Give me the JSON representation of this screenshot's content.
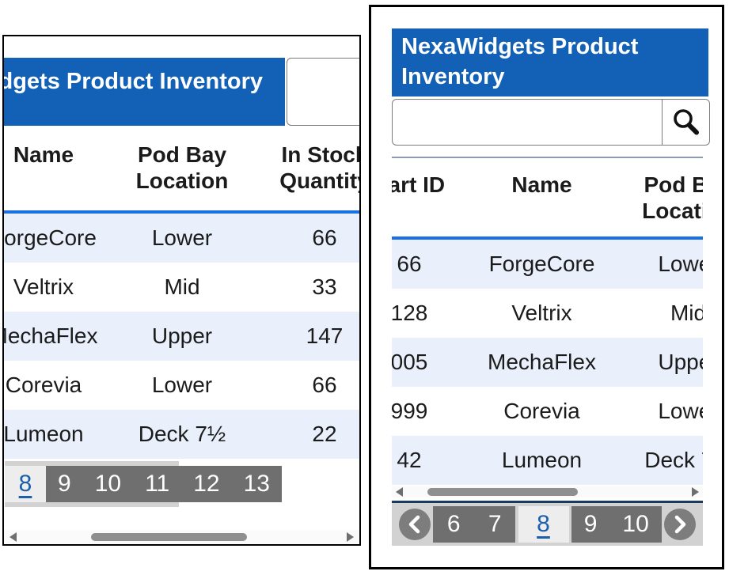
{
  "title": "NexaWidgets Product Inventory",
  "search": {
    "value": "",
    "placeholder": ""
  },
  "table": {
    "columns": [
      "Part ID",
      "Name",
      "Pod Bay Location",
      "In Stock Quantity"
    ],
    "rows": [
      {
        "part_id": "66",
        "name": "ForgeCore",
        "pod_bay_location": "Lower",
        "in_stock_quantity": "66"
      },
      {
        "part_id": "128",
        "name": "Veltrix",
        "pod_bay_location": "Mid",
        "in_stock_quantity": "33"
      },
      {
        "part_id": "005",
        "name": "MechaFlex",
        "pod_bay_location": "Upper",
        "in_stock_quantity": "147"
      },
      {
        "part_id": "999",
        "name": "Corevia",
        "pod_bay_location": "Lower",
        "in_stock_quantity": "66"
      },
      {
        "part_id": "42",
        "name": "Lumeon",
        "pod_bay_location": "Deck 7½",
        "in_stock_quantity": "22"
      }
    ]
  },
  "left_view": {
    "pagination": {
      "current": "8",
      "pages_after": [
        "9",
        "10",
        "11",
        "12",
        "13"
      ]
    }
  },
  "right_view": {
    "pagination": {
      "pages_before": [
        "6",
        "7"
      ],
      "current": "8",
      "pages_after": [
        "9",
        "10"
      ]
    }
  },
  "icons": {
    "search": "search-icon",
    "prev": "chevron-left-icon",
    "next": "chevron-right-icon",
    "scroll_left": "scroll-left-arrow-icon",
    "scroll_right": "scroll-right-arrow-icon"
  },
  "colors": {
    "header_blue": "#1261b6",
    "stripe": "#e9f0fc",
    "rule_blue": "#1a70e0",
    "page_current": "#1b5fad",
    "pager_dark": "#6f6f6f",
    "pager_bar": "#d2d2d2",
    "pager_current_bg": "#ededed",
    "footer_line": "#1b3a5f",
    "circle": "#7d7d7d",
    "text": "#1b1b1b",
    "border": "#000000",
    "scroll_thumb": "#8f8f8f"
  }
}
